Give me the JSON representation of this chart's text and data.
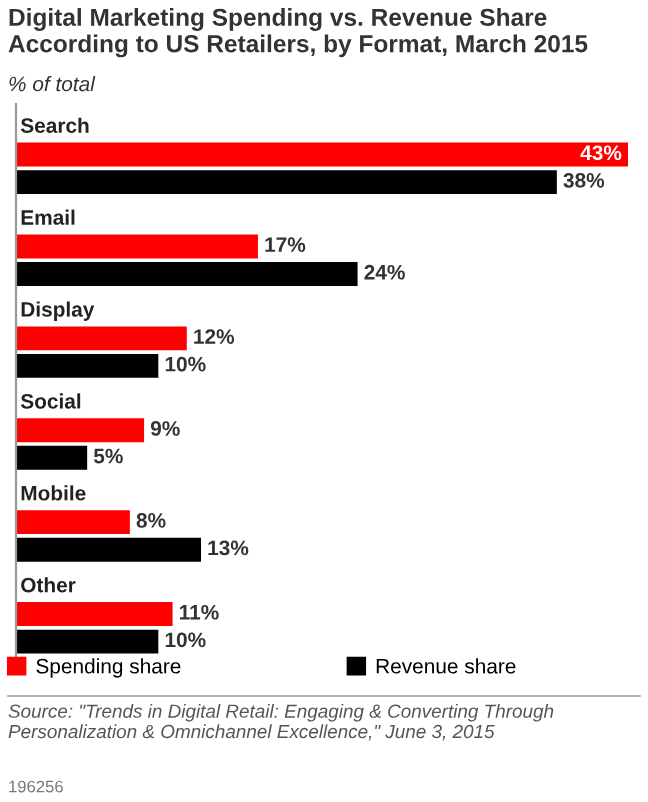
{
  "chart_data": {
    "type": "bar",
    "orientation": "horizontal",
    "title": "Digital Marketing Spending vs. Revenue Share According to US Retailers, by Format, March 2015",
    "subtitle": "% of total",
    "categories": [
      "Search",
      "Email",
      "Display",
      "Social",
      "Mobile",
      "Other"
    ],
    "series": [
      {
        "name": "Spending share",
        "color": "#ff0000",
        "values": [
          43,
          17,
          12,
          9,
          8,
          11
        ],
        "value_labels": [
          "43%",
          "17%",
          "12%",
          "9%",
          "8%",
          "11%"
        ]
      },
      {
        "name": "Revenue share",
        "color": "#000000",
        "values": [
          38,
          24,
          10,
          5,
          13,
          10
        ],
        "value_labels": [
          "38%",
          "24%",
          "10%",
          "5%",
          "13%",
          "10%"
        ]
      }
    ],
    "legend": "bottom",
    "annotations": [
      "Source: \"Trends in Digital Retail: Engaging & Converting Through Personalization & Omnichannel Excellence,\" June 3, 2015",
      "196256"
    ]
  }
}
